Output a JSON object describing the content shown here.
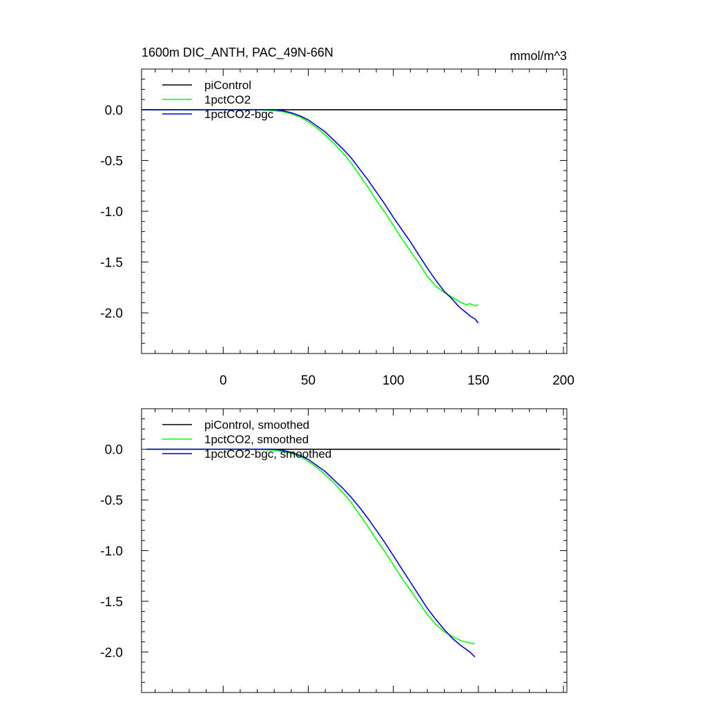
{
  "chart_data": [
    {
      "type": "line",
      "title": "1600m DIC_ANTH, PAC_49N-66N",
      "units": "mmol/m^3",
      "xlabel": "",
      "ylabel": "",
      "xlim": [
        -48,
        202
      ],
      "ylim": [
        -2.4,
        0.4
      ],
      "xticks": [
        0,
        50,
        100,
        150,
        200
      ],
      "xtick_labels": [
        "0",
        "50",
        "100",
        "150",
        "200"
      ],
      "yticks": [
        0.0,
        -0.5,
        -1.0,
        -1.5,
        -2.0
      ],
      "ytick_labels": [
        "0.0",
        "-0.5",
        "-1.0",
        "-1.5",
        "-2.0"
      ],
      "legend_position": "top-left",
      "grid": false,
      "series": [
        {
          "name": "piControl",
          "color": "#000000",
          "x": [
            -48,
            202
          ],
          "y": [
            0.0,
            0.0
          ]
        },
        {
          "name": "1pctCO2",
          "color": "#00ff00",
          "x": [
            -48,
            -20,
            0,
            20,
            30,
            35,
            40,
            45,
            50,
            55,
            60,
            65,
            70,
            75,
            80,
            85,
            90,
            95,
            100,
            105,
            110,
            115,
            120,
            125,
            130,
            135,
            138,
            140,
            143,
            145,
            148,
            150
          ],
          "y": [
            0.0,
            0.0,
            0.0,
            0.0,
            -0.01,
            -0.02,
            -0.04,
            -0.07,
            -0.12,
            -0.18,
            -0.25,
            -0.33,
            -0.42,
            -0.52,
            -0.64,
            -0.76,
            -0.89,
            -1.01,
            -1.14,
            -1.27,
            -1.39,
            -1.51,
            -1.64,
            -1.74,
            -1.8,
            -1.85,
            -1.88,
            -1.9,
            -1.92,
            -1.91,
            -1.93,
            -1.92
          ]
        },
        {
          "name": "1pctCO2-bgc",
          "color": "#0000cc",
          "x": [
            -48,
            -20,
            0,
            20,
            30,
            35,
            40,
            45,
            50,
            55,
            60,
            65,
            70,
            75,
            80,
            85,
            90,
            95,
            100,
            105,
            110,
            115,
            120,
            125,
            130,
            135,
            138,
            140,
            143,
            145,
            148,
            150
          ],
          "y": [
            0.0,
            0.0,
            0.0,
            0.0,
            0.0,
            -0.01,
            -0.03,
            -0.06,
            -0.1,
            -0.16,
            -0.22,
            -0.3,
            -0.38,
            -0.47,
            -0.58,
            -0.69,
            -0.81,
            -0.93,
            -1.06,
            -1.18,
            -1.3,
            -1.43,
            -1.56,
            -1.68,
            -1.79,
            -1.87,
            -1.93,
            -1.96,
            -2.0,
            -2.03,
            -2.06,
            -2.1
          ]
        }
      ]
    },
    {
      "type": "line",
      "title": "",
      "xlabel": "",
      "ylabel": "",
      "xlim": [
        -48,
        202
      ],
      "ylim": [
        -2.4,
        0.4
      ],
      "xticks": [
        0,
        50,
        100,
        150,
        200
      ],
      "xtick_labels": [],
      "yticks": [
        0.0,
        -0.5,
        -1.0,
        -1.5,
        -2.0
      ],
      "ytick_labels": [
        "0.0",
        "-0.5",
        "-1.0",
        "-1.5",
        "-2.0"
      ],
      "legend_position": "top-left",
      "grid": false,
      "series": [
        {
          "name": "piControl, smoothed",
          "color": "#000000",
          "x": [
            -45,
            198
          ],
          "y": [
            0.0,
            0.0
          ]
        },
        {
          "name": "1pctCO2, smoothed",
          "color": "#00ff00",
          "x": [
            -45,
            -20,
            0,
            20,
            30,
            35,
            40,
            45,
            50,
            55,
            60,
            65,
            70,
            75,
            80,
            85,
            90,
            95,
            100,
            105,
            110,
            115,
            120,
            125,
            130,
            135,
            140,
            145,
            148
          ],
          "y": [
            0.0,
            0.0,
            0.0,
            0.0,
            -0.01,
            -0.02,
            -0.04,
            -0.07,
            -0.12,
            -0.18,
            -0.25,
            -0.33,
            -0.42,
            -0.52,
            -0.64,
            -0.76,
            -0.89,
            -1.01,
            -1.14,
            -1.27,
            -1.39,
            -1.51,
            -1.63,
            -1.73,
            -1.8,
            -1.85,
            -1.89,
            -1.91,
            -1.92
          ]
        },
        {
          "name": "1pctCO2-bgc, smoothed",
          "color": "#0000cc",
          "x": [
            -45,
            -20,
            0,
            20,
            30,
            35,
            40,
            45,
            50,
            55,
            60,
            65,
            70,
            75,
            80,
            85,
            90,
            95,
            100,
            105,
            110,
            115,
            120,
            125,
            130,
            135,
            140,
            145,
            148
          ],
          "y": [
            0.0,
            0.0,
            0.0,
            0.0,
            0.0,
            -0.01,
            -0.03,
            -0.06,
            -0.1,
            -0.16,
            -0.22,
            -0.3,
            -0.38,
            -0.47,
            -0.57,
            -0.68,
            -0.8,
            -0.92,
            -1.05,
            -1.18,
            -1.31,
            -1.44,
            -1.57,
            -1.68,
            -1.78,
            -1.87,
            -1.94,
            -2.0,
            -2.05
          ]
        }
      ]
    }
  ]
}
